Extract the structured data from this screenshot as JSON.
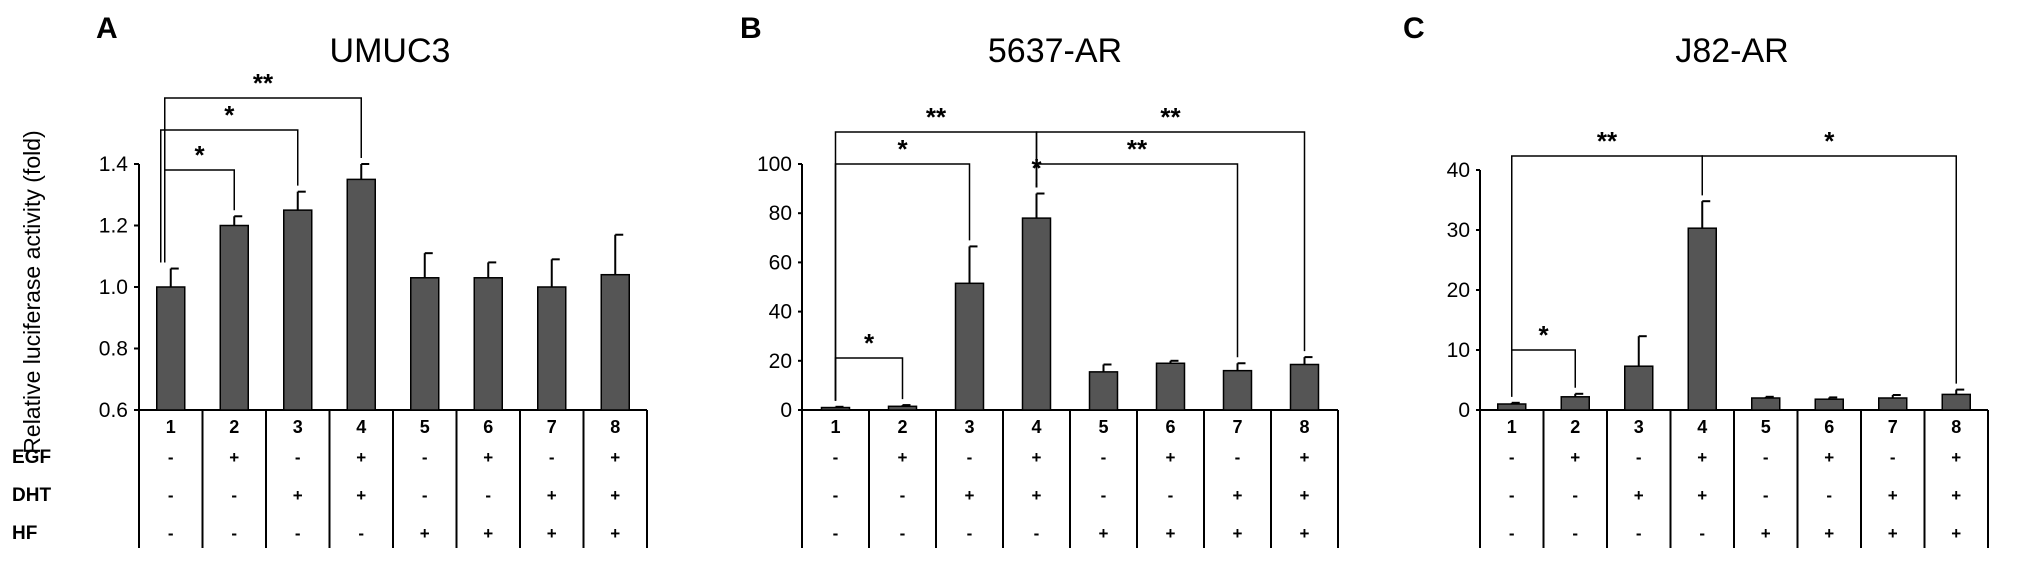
{
  "chart_data": [
    {
      "type": "bar",
      "panel": "A",
      "title": "UMUC3",
      "ylabel": "Relative luciferase activity (fold)",
      "ylim": [
        0.6,
        1.4
      ],
      "yticks": [
        "0.6",
        "0.8",
        "1.0",
        "1.2",
        "1.4"
      ],
      "categories": [
        "1",
        "2",
        "3",
        "4",
        "5",
        "6",
        "7",
        "8"
      ],
      "values": [
        1.0,
        1.2,
        1.25,
        1.35,
        1.03,
        1.03,
        1.0,
        1.04
      ],
      "errors": [
        0.06,
        0.03,
        0.06,
        0.05,
        0.08,
        0.05,
        0.09,
        0.13
      ],
      "bar_color": "#555555",
      "significance": [
        {
          "from": "1",
          "to": "2",
          "label": "*"
        },
        {
          "from": "1",
          "to": "3",
          "label": "*"
        },
        {
          "from": "1",
          "to": "4",
          "label": "**"
        }
      ]
    },
    {
      "type": "bar",
      "panel": "B",
      "title": "5637-AR",
      "ylabel": "",
      "ylim": [
        0,
        100
      ],
      "yticks": [
        "0",
        "20",
        "40",
        "60",
        "80",
        "100"
      ],
      "categories": [
        "1",
        "2",
        "3",
        "4",
        "5",
        "6",
        "7",
        "8"
      ],
      "values": [
        1,
        1.5,
        51.5,
        78,
        15.5,
        19,
        16,
        18.5
      ],
      "errors": [
        0.3,
        0.5,
        15,
        10,
        3,
        1,
        3,
        3
      ],
      "bar_color": "#555555",
      "significance": [
        {
          "from": "1",
          "to": "2",
          "label": "*"
        },
        {
          "from": "1",
          "to": "3",
          "label": "*"
        },
        {
          "from": "3",
          "to": "4",
          "label": "*"
        },
        {
          "from": "4",
          "to": "7",
          "label": "**"
        },
        {
          "from": "1",
          "to": "4",
          "label": "**"
        },
        {
          "from": "4",
          "to": "8",
          "label": "**"
        }
      ]
    },
    {
      "type": "bar",
      "panel": "C",
      "title": "J82-AR",
      "ylabel": "",
      "ylim": [
        0,
        40
      ],
      "yticks": [
        "0",
        "10",
        "20",
        "30",
        "40"
      ],
      "categories": [
        "1",
        "2",
        "3",
        "4",
        "5",
        "6",
        "7",
        "8"
      ],
      "values": [
        1,
        2.2,
        7.3,
        30.3,
        2,
        1.8,
        2,
        2.6
      ],
      "errors": [
        0.2,
        0.5,
        5,
        4.5,
        0.2,
        0.3,
        0.5,
        0.8
      ],
      "bar_color": "#555555",
      "significance": [
        {
          "from": "1",
          "to": "2",
          "label": "*"
        },
        {
          "from": "1",
          "to": "4",
          "label": "**"
        },
        {
          "from": "4",
          "to": "8",
          "label": "*"
        }
      ]
    }
  ],
  "treatment_table": {
    "rows": [
      {
        "label": "EGF",
        "signs": [
          "-",
          "+",
          "-",
          "+",
          "-",
          "+",
          "-",
          "+"
        ]
      },
      {
        "label": "DHT",
        "signs": [
          "-",
          "-",
          "+",
          "+",
          "-",
          "-",
          "+",
          "+"
        ]
      },
      {
        "label": "HF",
        "signs": [
          "-",
          "-",
          "-",
          "-",
          "+",
          "+",
          "+",
          "+"
        ]
      }
    ]
  }
}
